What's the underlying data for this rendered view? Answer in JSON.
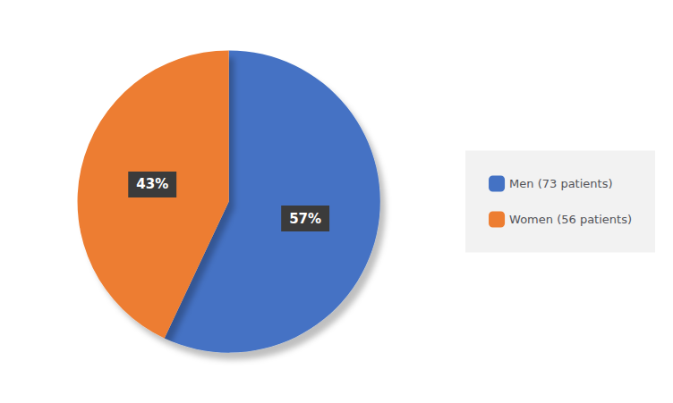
{
  "chart_data": {
    "type": "pie",
    "categories": [
      "Men (73 patients)",
      "Women (56 patients)"
    ],
    "values": [
      57,
      43
    ],
    "value_labels": [
      "57%",
      "43%"
    ],
    "colors": [
      "#4472C4",
      "#ED7D31"
    ],
    "data_labels": true,
    "legend": "right"
  }
}
